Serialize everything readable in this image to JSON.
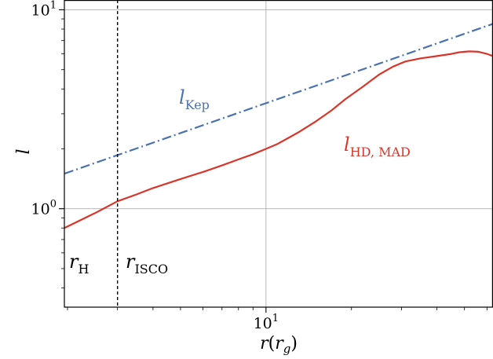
{
  "chart_data": {
    "type": "line",
    "xlabel_main": "r",
    "xlabel_paren_open": "(",
    "xlabel_var": "r",
    "xlabel_sub": "g",
    "xlabel_paren_close": ")",
    "ylabel": "l",
    "xscale": "log",
    "yscale": "log",
    "xlim": [
      1.95,
      63
    ],
    "ylim": [
      0.32,
      11.2
    ],
    "grid": true,
    "x_ticks": [
      {
        "value": 10,
        "base": "10",
        "exp": "1"
      }
    ],
    "y_ticks": [
      {
        "value": 1,
        "base": "10",
        "exp": "0"
      },
      {
        "value": 10,
        "base": "10",
        "exp": "1"
      }
    ],
    "vlines": [
      {
        "x": 3.0,
        "style": "dashed",
        "color": "#000000"
      }
    ],
    "series": [
      {
        "name_main": "l",
        "name_sub": "Kep",
        "color": "#4a72b0",
        "style": "dashdot",
        "x": [
          1.95,
          63
        ],
        "y": [
          1.5,
          8.5
        ]
      },
      {
        "name_main": "l",
        "name_sub": "HD, MAD",
        "color": "#d9362b",
        "style": "solid",
        "x": [
          1.95,
          2.2,
          2.5,
          3.0,
          3.5,
          4.0,
          5.0,
          6.0,
          7.0,
          8.0,
          9.0,
          10,
          11,
          12,
          13,
          15,
          17,
          19,
          22,
          25,
          28,
          31,
          35,
          40,
          45,
          48,
          52,
          56,
          60,
          63
        ],
        "y": [
          0.8,
          0.87,
          0.95,
          1.09,
          1.18,
          1.27,
          1.41,
          1.53,
          1.65,
          1.77,
          1.88,
          2.0,
          2.12,
          2.27,
          2.42,
          2.75,
          3.12,
          3.55,
          4.12,
          4.72,
          5.18,
          5.5,
          5.7,
          5.85,
          6.0,
          6.12,
          6.18,
          6.15,
          6.0,
          5.85
        ]
      }
    ],
    "annotations": [
      {
        "main": "l",
        "sub": "Kep",
        "color": "#4a72b0"
      },
      {
        "main": "l",
        "sub": "HD, MAD",
        "color": "#d9362b"
      },
      {
        "main": "r",
        "sub": "H",
        "color": "#000000"
      },
      {
        "main": "r",
        "sub": "ISCO",
        "color": "#000000"
      }
    ]
  }
}
